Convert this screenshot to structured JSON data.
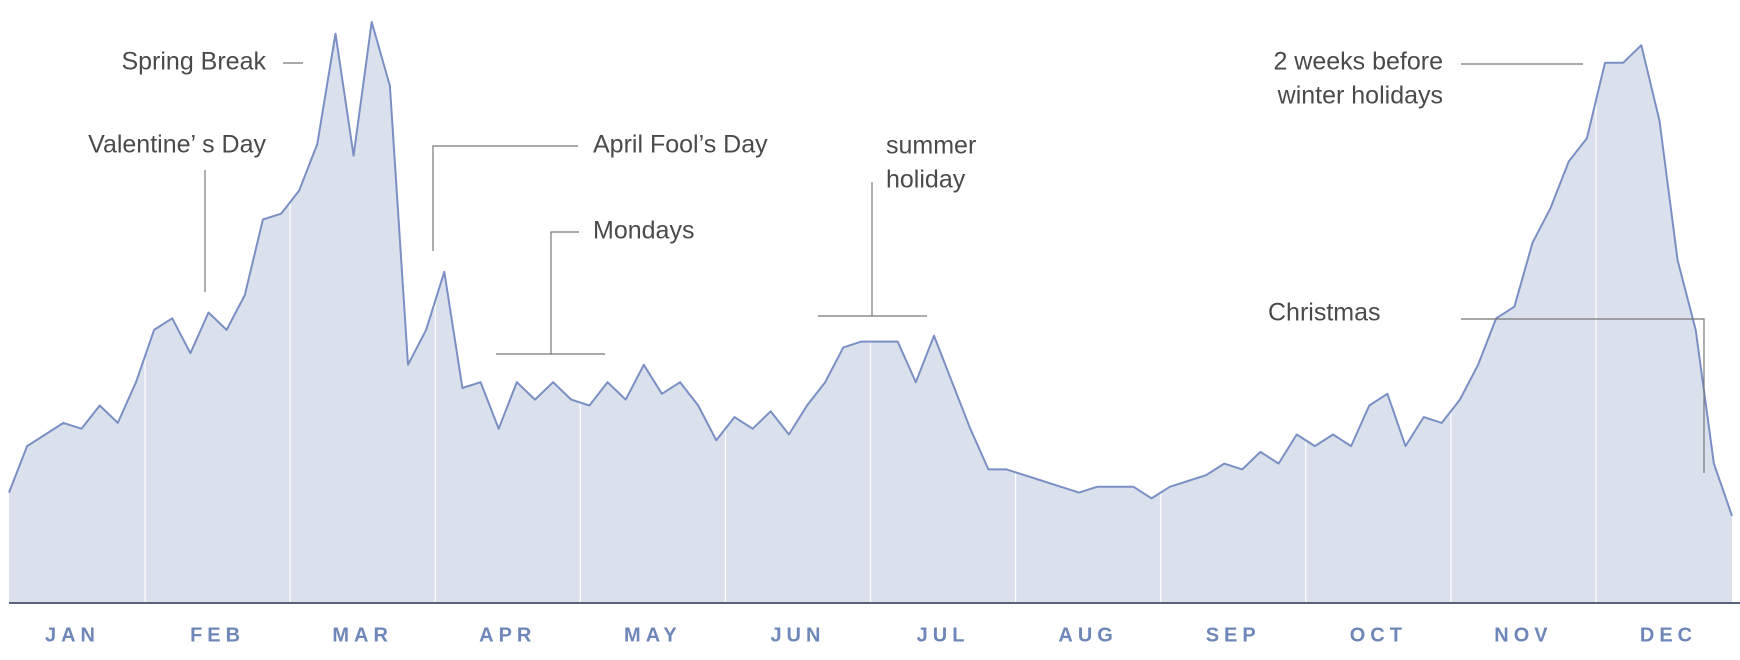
{
  "chart_data": {
    "type": "area",
    "categories": [
      null,
      null,
      null,
      null,
      "JAN",
      null,
      null,
      null,
      null,
      null,
      null,
      null,
      "FEB",
      null,
      null,
      null,
      null,
      null,
      null,
      null,
      "MAR",
      null,
      null,
      null,
      null,
      null,
      null,
      null,
      "APR",
      null,
      null,
      null,
      null,
      null,
      null,
      null,
      "MAY",
      null,
      null,
      null,
      null,
      null,
      null,
      null,
      "JUN",
      null,
      null,
      null,
      null,
      null,
      null,
      null,
      "JUL",
      null,
      null,
      null,
      null,
      null,
      null,
      null,
      "AUG",
      null,
      null,
      null,
      null,
      null,
      null,
      null,
      "SEP",
      null,
      null,
      null,
      null,
      null,
      null,
      null,
      "OCT",
      null,
      null,
      null,
      null,
      null,
      null,
      null,
      "NOV",
      null,
      null,
      null,
      null,
      null,
      null,
      null,
      "DEC",
      null,
      null,
      null
    ],
    "values": [
      19,
      27,
      29,
      31,
      30,
      34,
      31,
      38,
      47,
      49,
      43,
      50,
      47,
      53,
      66,
      67,
      71,
      79,
      98,
      77,
      100,
      89,
      41,
      47,
      57,
      37,
      38,
      30,
      38,
      35,
      38,
      35,
      34,
      38,
      35,
      41,
      36,
      38,
      34,
      28,
      32,
      30,
      33,
      29,
      34,
      38,
      44,
      45,
      45,
      45,
      38,
      46,
      38,
      30,
      23,
      23,
      22,
      21,
      20,
      19,
      20,
      20,
      20,
      18,
      20,
      21,
      22,
      24,
      23,
      26,
      24,
      29,
      27,
      29,
      27,
      34,
      36,
      27,
      32,
      31,
      35,
      41,
      49,
      51,
      62,
      68,
      76,
      80,
      93,
      93,
      96,
      83,
      59,
      47,
      24,
      15
    ],
    "color": "#7b8fc4",
    "area_color": "#dbe1ec",
    "ylim": [
      0,
      100
    ],
    "annotations": [
      {
        "lines": [
          "Spring Break"
        ]
      },
      {
        "lines": [
          "Valentine’ s Day"
        ]
      },
      {
        "lines": [
          "April Fool’s Day"
        ]
      },
      {
        "lines": [
          "Mondays"
        ]
      },
      {
        "lines": [
          "summer",
          "holiday"
        ]
      },
      {
        "lines": [
          "2 weeks before",
          "winter holidays"
        ]
      },
      {
        "lines": [
          "Christmas"
        ]
      }
    ]
  }
}
